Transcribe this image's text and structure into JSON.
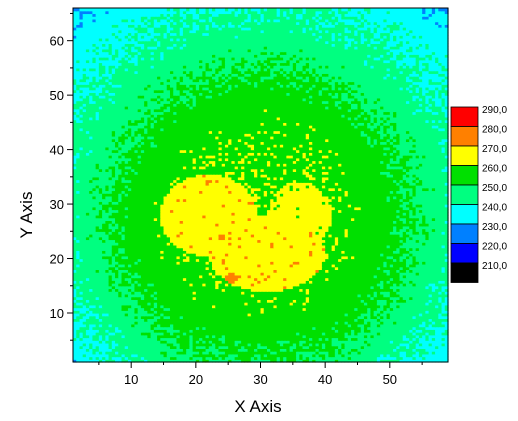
{
  "chart_data": {
    "type": "heatmap",
    "title": "",
    "xlabel": "X Axis",
    "ylabel": "Y Axis",
    "xlim": [
      1,
      59
    ],
    "ylim": [
      1,
      66
    ],
    "x_ticks": [
      10,
      20,
      30,
      40,
      50
    ],
    "y_ticks": [
      10,
      20,
      30,
      40,
      50,
      60
    ],
    "x_tick_labels": [
      "10",
      "20",
      "30",
      "40",
      "50"
    ],
    "y_tick_labels": [
      "10",
      "20",
      "30",
      "40",
      "50",
      "60"
    ],
    "grid": false,
    "legend_placement": "right",
    "levels": [
      {
        "label": "210,0",
        "color": "#000000"
      },
      {
        "label": "220,0",
        "color": "#0000ff"
      },
      {
        "label": "230,0",
        "color": "#0080ff"
      },
      {
        "label": "240,0",
        "color": "#00ffff"
      },
      {
        "label": "250,0",
        "color": "#00ff80"
      },
      {
        "label": "260,0",
        "color": "#00e000"
      },
      {
        "label": "270,0",
        "color": "#ffff00"
      },
      {
        "label": "280,0",
        "color": "#ff8000"
      },
      {
        "label": "290,0",
        "color": "#ff0000"
      }
    ],
    "field": {
      "background_value": 232,
      "plateau": [
        {
          "cx": 30,
          "cy": 33,
          "rx": 28.5,
          "ry": 32,
          "value": 246
        },
        {
          "cx": 30,
          "cy": 31,
          "rx": 25.5,
          "ry": 28,
          "value": 256
        },
        {
          "cx": 30,
          "cy": 28,
          "rx": 19,
          "ry": 22,
          "value": 265
        }
      ],
      "peaks": [
        {
          "cx": 22,
          "cy": 28,
          "rx": 7.5,
          "ry": 7.5,
          "value": 276
        },
        {
          "cx": 31,
          "cy": 21,
          "rx": 9,
          "ry": 7,
          "value": 276
        },
        {
          "cx": 36,
          "cy": 28,
          "rx": 5,
          "ry": 6,
          "value": 274
        },
        {
          "cx": 25.5,
          "cy": 16.5,
          "rx": 0.9,
          "ry": 0.9,
          "value": 285
        },
        {
          "cx": 24,
          "cy": 24,
          "rx": 0.6,
          "ry": 0.8,
          "value": 285
        }
      ]
    }
  }
}
